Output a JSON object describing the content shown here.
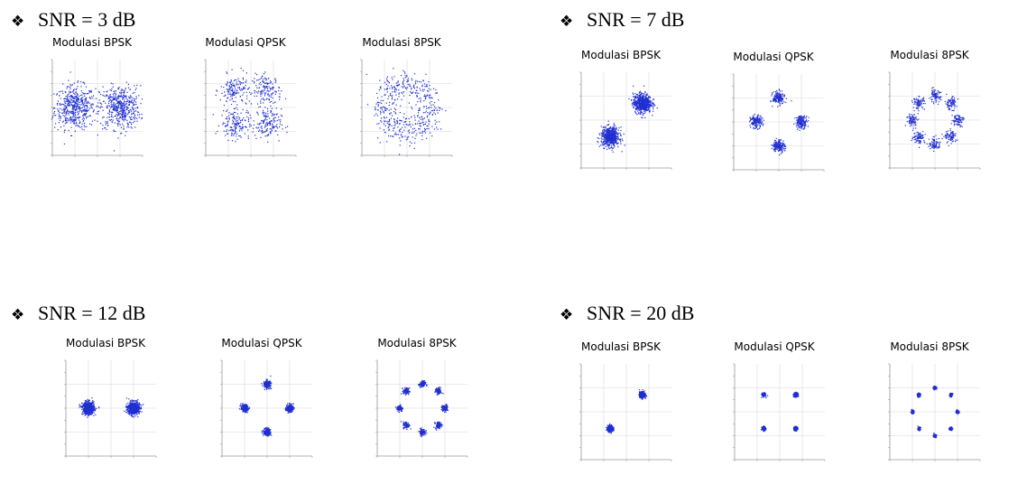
{
  "colors": {
    "points": "#1f2fd0",
    "axes": "#9a9a9a",
    "grid": "#d8d8d8"
  },
  "groups": [
    {
      "heading": "SNR = 3 dB",
      "bullet": "❖",
      "plots": [
        {
          "label": "Modulasi BPSK"
        },
        {
          "label": "Modulasi QPSK"
        },
        {
          "label": "Modulasi 8PSK"
        }
      ]
    },
    {
      "heading": "SNR = 7 dB",
      "bullet": "❖",
      "plots": [
        {
          "label": "Modulasi BPSK"
        },
        {
          "label": "Modulasi QPSK"
        },
        {
          "label": "Modulasi 8PSK"
        }
      ]
    },
    {
      "heading": "SNR = 12 dB",
      "bullet": "❖",
      "plots": [
        {
          "label": "Modulasi BPSK"
        },
        {
          "label": "Modulasi QPSK"
        },
        {
          "label": "Modulasi 8PSK"
        }
      ]
    },
    {
      "heading": "SNR = 20 dB",
      "bullet": "❖",
      "plots": [
        {
          "label": "Modulasi BPSK"
        },
        {
          "label": "Modulasi QPSK"
        },
        {
          "label": "Modulasi 8PSK"
        }
      ]
    }
  ],
  "chart_data": [
    {
      "type": "scatter",
      "snr_db": 3,
      "modulation": "BPSK",
      "centers": [
        [
          -1,
          0
        ],
        [
          1,
          0
        ]
      ],
      "noise_std": 0.45,
      "points_per_center": 500,
      "xlim": [
        -2,
        2
      ],
      "ylim": [
        -2,
        2
      ]
    },
    {
      "type": "scatter",
      "snr_db": 3,
      "modulation": "QPSK",
      "centers": [
        [
          0.707,
          0.707
        ],
        [
          -0.707,
          0.707
        ],
        [
          -0.707,
          -0.707
        ],
        [
          0.707,
          -0.707
        ]
      ],
      "noise_std": 0.32,
      "points_per_center": 150,
      "xlim": [
        -2,
        2
      ],
      "ylim": [
        -2,
        2
      ]
    },
    {
      "type": "scatter",
      "snr_db": 3,
      "modulation": "8PSK",
      "centers": [
        [
          1,
          0
        ],
        [
          0.707,
          0.707
        ],
        [
          0,
          1
        ],
        [
          -0.707,
          0.707
        ],
        [
          -1,
          0
        ],
        [
          -0.707,
          -0.707
        ],
        [
          0,
          -1
        ],
        [
          0.707,
          -0.707
        ]
      ],
      "noise_std": 0.32,
      "points_per_center": 60,
      "xlim": [
        -2,
        2
      ],
      "ylim": [
        -2,
        2
      ]
    },
    {
      "type": "scatter",
      "snr_db": 7,
      "modulation": "BPSK",
      "centers": [
        [
          0.707,
          0.707
        ],
        [
          -0.707,
          -0.707
        ]
      ],
      "noise_std": 0.2,
      "points_per_center": 600,
      "xlim": [
        -2,
        2
      ],
      "ylim": [
        -2,
        2
      ]
    },
    {
      "type": "scatter",
      "snr_db": 7,
      "modulation": "QPSK",
      "centers": [
        [
          0,
          1
        ],
        [
          -1,
          0
        ],
        [
          1,
          0
        ],
        [
          0,
          -1
        ]
      ],
      "noise_std": 0.13,
      "points_per_center": 170,
      "xlim": [
        -2,
        2
      ],
      "ylim": [
        -2,
        2
      ]
    },
    {
      "type": "scatter",
      "snr_db": 7,
      "modulation": "8PSK",
      "centers": [
        [
          1,
          0
        ],
        [
          0.707,
          0.707
        ],
        [
          0,
          1
        ],
        [
          -0.707,
          0.707
        ],
        [
          -1,
          0
        ],
        [
          -0.707,
          -0.707
        ],
        [
          0,
          -1
        ],
        [
          0.707,
          -0.707
        ]
      ],
      "noise_std": 0.13,
      "points_per_center": 80,
      "xlim": [
        -2,
        2
      ],
      "ylim": [
        -2,
        2
      ]
    },
    {
      "type": "scatter",
      "snr_db": 12,
      "modulation": "BPSK",
      "centers": [
        [
          -1,
          0
        ],
        [
          1,
          0
        ]
      ],
      "noise_std": 0.13,
      "points_per_center": 600,
      "xlim": [
        -2,
        2
      ],
      "ylim": [
        -2,
        2
      ]
    },
    {
      "type": "scatter",
      "snr_db": 12,
      "modulation": "QPSK",
      "centers": [
        [
          0,
          1
        ],
        [
          -1,
          0
        ],
        [
          1,
          0
        ],
        [
          0,
          -1
        ]
      ],
      "noise_std": 0.08,
      "points_per_center": 180,
      "xlim": [
        -2,
        2
      ],
      "ylim": [
        -2,
        2
      ]
    },
    {
      "type": "scatter",
      "snr_db": 12,
      "modulation": "8PSK",
      "centers": [
        [
          1,
          0
        ],
        [
          0.707,
          0.707
        ],
        [
          0,
          1
        ],
        [
          -0.707,
          0.707
        ],
        [
          -1,
          0
        ],
        [
          -0.707,
          -0.707
        ],
        [
          0,
          -1
        ],
        [
          0.707,
          -0.707
        ]
      ],
      "noise_std": 0.07,
      "points_per_center": 90,
      "xlim": [
        -2,
        2
      ],
      "ylim": [
        -2,
        2
      ]
    },
    {
      "type": "scatter",
      "snr_db": 20,
      "modulation": "BPSK",
      "centers": [
        [
          0.707,
          0.707
        ],
        [
          -0.707,
          -0.707
        ]
      ],
      "noise_std": 0.06,
      "points_per_center": 500,
      "xlim": [
        -2,
        2
      ],
      "ylim": [
        -2,
        2
      ]
    },
    {
      "type": "scatter",
      "snr_db": 20,
      "modulation": "QPSK",
      "centers": [
        [
          0.707,
          0.707
        ],
        [
          -0.707,
          0.707
        ],
        [
          -0.707,
          -0.707
        ],
        [
          0.707,
          -0.707
        ]
      ],
      "noise_std": 0.04,
      "points_per_center": 160,
      "xlim": [
        -2,
        2
      ],
      "ylim": [
        -2,
        2
      ]
    },
    {
      "type": "scatter",
      "snr_db": 20,
      "modulation": "8PSK",
      "centers": [
        [
          0,
          1
        ],
        [
          0.707,
          0.707
        ],
        [
          1,
          0
        ],
        [
          0.707,
          -0.707
        ],
        [
          0,
          -1
        ],
        [
          -0.707,
          -0.707
        ],
        [
          -1,
          0
        ],
        [
          -0.707,
          0.707
        ]
      ],
      "noise_std": 0.035,
      "points_per_center": 80,
      "xlim": [
        -2,
        2
      ],
      "ylim": [
        -2,
        2
      ]
    }
  ]
}
